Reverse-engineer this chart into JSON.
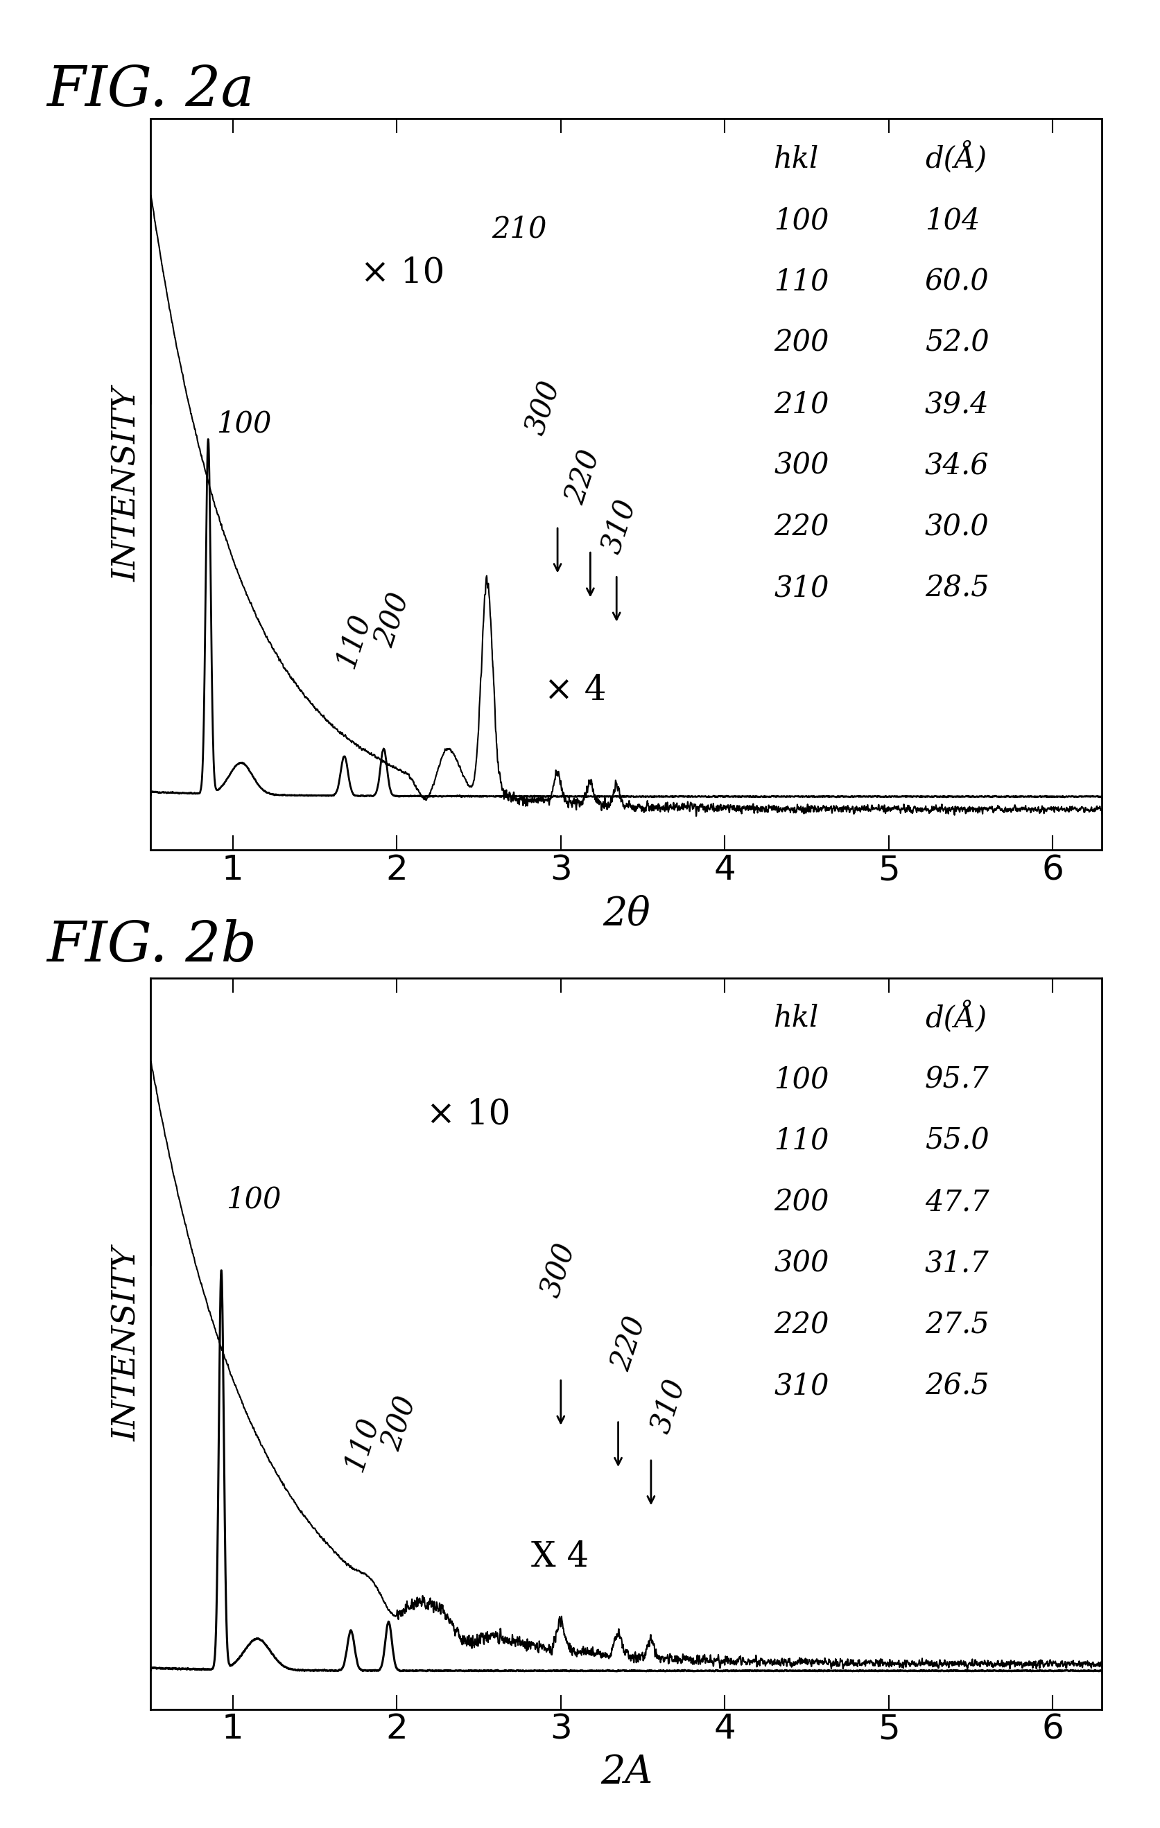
{
  "fig_title_a": "FIG. 2a",
  "fig_title_b": "FIG. 2b",
  "xlabel_a": "2θ",
  "xlabel_b": "2A",
  "ylabel": "INTENSITY",
  "xlim": [
    0.5,
    6.3
  ],
  "xticks": [
    1,
    2,
    3,
    4,
    5,
    6
  ],
  "table_a": {
    "hkl": [
      "100",
      "110",
      "200",
      "210",
      "300",
      "220",
      "310"
    ],
    "d": [
      "104",
      "60.0",
      "52.0",
      "39.4",
      "34.6",
      "30.0",
      "28.5"
    ]
  },
  "table_b": {
    "hkl": [
      "100",
      "110",
      "200",
      "300",
      "220",
      "310"
    ],
    "d": [
      "95.7",
      "55.0",
      "47.7",
      "31.7",
      "27.5",
      "26.5"
    ]
  }
}
